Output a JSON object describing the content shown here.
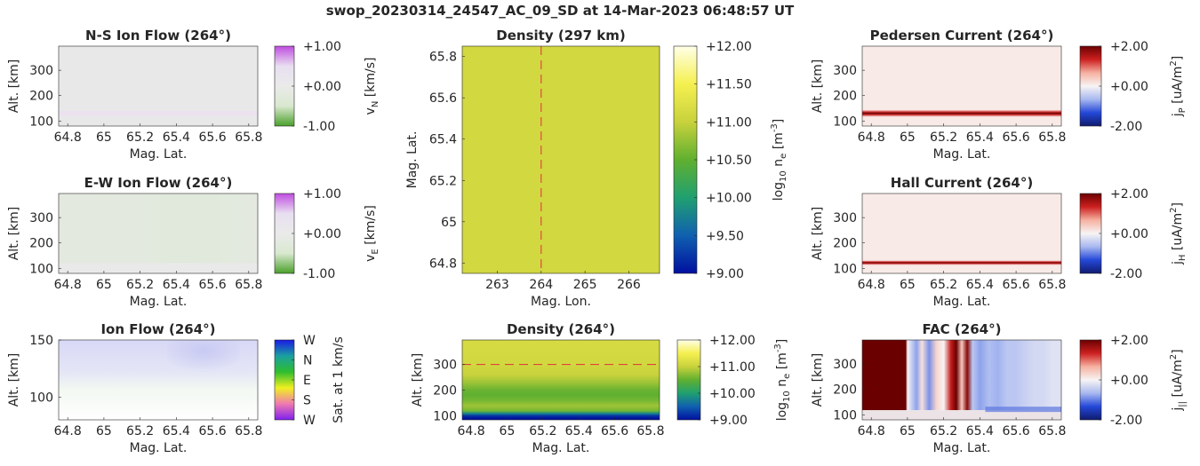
{
  "figure_title": "swop_20230314_24547_AC_09_SD at 14-Mar-2023 06:48:57 UT",
  "chart_data": [
    {
      "id": "ns",
      "type": "heatmap",
      "title": "N-S Ion Flow (264°)",
      "xlabel": "Mag. Lat.",
      "ylabel": "Alt. [km]",
      "xlim": [
        64.75,
        65.85
      ],
      "ylim": [
        80,
        395
      ],
      "xticks": [
        "64.8",
        "65",
        "65.2",
        "65.4",
        "65.6",
        "65.8"
      ],
      "xtick_values": [
        64.8,
        65.0,
        65.2,
        65.4,
        65.6,
        65.8
      ],
      "yticks": [
        "100",
        "200",
        "300"
      ],
      "ytick_values": [
        100,
        200,
        300
      ],
      "colorbar": {
        "label": "v",
        "label_sub": "N",
        "label_rest": " [km/s]",
        "ticks": [
          "+1.00",
          "+0.00",
          "-1.00"
        ],
        "colors": [
          "#c04de0",
          "#e8dff0",
          "#eaeaea",
          "#d9e8cf",
          "#4aa02a"
        ]
      },
      "description": "Near-zero flow everywhere; faint magenta band around 130 km.",
      "band": {
        "alt_low": 120,
        "alt_high": 140,
        "value": 0.1
      }
    },
    {
      "id": "ew",
      "type": "heatmap",
      "title": "E-W Ion Flow (264°)",
      "xlabel": "Mag. Lat.",
      "ylabel": "Alt. [km]",
      "xlim": [
        64.75,
        65.85
      ],
      "ylim": [
        80,
        395
      ],
      "xticks": [
        "64.8",
        "65",
        "65.2",
        "65.4",
        "65.6",
        "65.8"
      ],
      "xtick_values": [
        64.8,
        65.0,
        65.2,
        65.4,
        65.6,
        65.8
      ],
      "yticks": [
        "100",
        "200",
        "300"
      ],
      "ytick_values": [
        100,
        200,
        300
      ],
      "colorbar": {
        "label": "v",
        "label_sub": "E",
        "label_rest": " [km/s]",
        "ticks": [
          "+1.00",
          "+0.00",
          "-1.00"
        ],
        "colors": [
          "#c04de0",
          "#e8dff0",
          "#eaeaea",
          "#d9e8cf",
          "#4aa02a"
        ]
      },
      "description": "Weak negative (green) flow above ~120 km, stronger near Mag. Lat. 65.4-65.6.",
      "flow_by_lat": {
        "lat": [
          64.8,
          65.0,
          65.2,
          65.4,
          65.6,
          65.8
        ],
        "value": [
          -0.2,
          -0.22,
          -0.2,
          -0.28,
          -0.26,
          -0.2
        ]
      }
    },
    {
      "id": "ionflow",
      "type": "heatmap",
      "title": "Ion Flow (264°)",
      "xlabel": "Mag. Lat.",
      "ylabel": "Alt. [km]",
      "xlim": [
        64.75,
        65.85
      ],
      "ylim": [
        80,
        150
      ],
      "xticks": [
        "64.8",
        "65",
        "65.2",
        "65.4",
        "65.6",
        "65.8"
      ],
      "xtick_values": [
        64.8,
        65.0,
        65.2,
        65.4,
        65.6,
        65.8
      ],
      "yticks": [
        "100",
        "150"
      ],
      "ytick_values": [
        100,
        150
      ],
      "colorbar": {
        "label": "Sat. at 1 km/s",
        "ticks": [
          "W",
          "N",
          "E",
          "S",
          "W"
        ],
        "colors": [
          "#1a1ae6",
          "#1aa0a0",
          "#2ebd2e",
          "#f0f020",
          "#f07ab0",
          "#8020f0"
        ]
      },
      "description": "Pale lavender (westward) above ~120 km, stronger near Mag. Lat. 65.4-65.6."
    },
    {
      "id": "dens_top",
      "type": "heatmap",
      "title": "Density (297 km)",
      "xlabel": "Mag. Lon.",
      "ylabel": "Mag. Lat.",
      "xlim": [
        262.2,
        266.7
      ],
      "ylim": [
        64.75,
        65.85
      ],
      "xticks": [
        "263",
        "264",
        "265",
        "266"
      ],
      "xtick_values": [
        263,
        264,
        265,
        266
      ],
      "yticks": [
        "64.8",
        "65",
        "65.2",
        "65.4",
        "65.6",
        "65.8"
      ],
      "ytick_values": [
        64.8,
        65.0,
        65.2,
        65.4,
        65.6,
        65.8
      ],
      "colorbar": {
        "label": "log",
        "label_sub": "10",
        "label_rest": " n",
        "label_sub2": "e",
        "label_unit": " [m",
        "label_sup": "-3",
        "label_end": "]",
        "ticks": [
          "+12.00",
          "+11.50",
          "+11.00",
          "+10.50",
          "+10.00",
          "+9.50",
          "+9.00"
        ],
        "colors": [
          "#ffffe8",
          "#f5f050",
          "#c8d23c",
          "#60b030",
          "#20a070",
          "#1060b0",
          "#0010a0"
        ]
      },
      "value": 11.1,
      "marker_lon": 264
    },
    {
      "id": "dens_bot",
      "type": "heatmap",
      "title": "Density (264°)",
      "xlabel": "Mag. Lat.",
      "ylabel": "Alt. [km]",
      "xlim": [
        64.75,
        65.85
      ],
      "ylim": [
        85,
        395
      ],
      "xticks": [
        "64.8",
        "65",
        "65.2",
        "65.4",
        "65.6",
        "65.8"
      ],
      "xtick_values": [
        64.8,
        65.0,
        65.2,
        65.4,
        65.6,
        65.8
      ],
      "yticks": [
        "100",
        "200",
        "300"
      ],
      "ytick_values": [
        100,
        200,
        300
      ],
      "colorbar": {
        "label": "log",
        "label_sub": "10",
        "label_rest": " n",
        "label_sub2": "e",
        "label_unit": " [m",
        "label_sup": "-3",
        "label_end": "]",
        "ticks": [
          "+12.00",
          "+11.00",
          "+10.00",
          "+9.00"
        ],
        "colors": [
          "#ffffe8",
          "#f5f050",
          "#c8d23c",
          "#60b030",
          "#20a070",
          "#1060b0",
          "#0010a0"
        ]
      },
      "profile": {
        "alt": [
          90,
          100,
          110,
          120,
          140,
          160,
          180,
          200,
          230,
          260,
          300,
          395
        ],
        "log_ne": [
          9.0,
          9.2,
          9.8,
          10.6,
          10.8,
          10.6,
          10.5,
          10.55,
          10.8,
          11.0,
          11.1,
          11.15
        ]
      },
      "marker_alt": 300
    },
    {
      "id": "ped",
      "type": "heatmap",
      "title": "Pedersen Current (264°)",
      "xlabel": "Mag. Lat.",
      "ylabel": "Alt. [km]",
      "xlim": [
        64.75,
        65.85
      ],
      "ylim": [
        80,
        395
      ],
      "xticks": [
        "64.8",
        "65",
        "65.2",
        "65.4",
        "65.6",
        "65.8"
      ],
      "xtick_values": [
        64.8,
        65.0,
        65.2,
        65.4,
        65.6,
        65.8
      ],
      "yticks": [
        "100",
        "200",
        "300"
      ],
      "ytick_values": [
        100,
        200,
        300
      ],
      "colorbar": {
        "label": "j",
        "label_sub": "P",
        "label_rest": " [uA/m",
        "label_sup": "2",
        "label_end": "]",
        "ticks": [
          "+2.00",
          "+0.00",
          "-2.00"
        ],
        "colors": [
          "#6b0000",
          "#cc2020",
          "#f6b0a0",
          "#f7f4f4",
          "#a8b8f0",
          "#2448d8",
          "#101a6e"
        ]
      },
      "band": {
        "alt_center": 130,
        "alt_halfwidth": 14,
        "value": 2.0
      },
      "background": 0.1
    },
    {
      "id": "hall",
      "type": "heatmap",
      "title": "Hall Current (264°)",
      "xlabel": "Mag. Lat.",
      "ylabel": "Alt. [km]",
      "xlim": [
        64.75,
        65.85
      ],
      "ylim": [
        80,
        395
      ],
      "xticks": [
        "64.8",
        "65",
        "65.2",
        "65.4",
        "65.6",
        "65.8"
      ],
      "xtick_values": [
        64.8,
        65.0,
        65.2,
        65.4,
        65.6,
        65.8
      ],
      "yticks": [
        "100",
        "200",
        "300"
      ],
      "ytick_values": [
        100,
        200,
        300
      ],
      "colorbar": {
        "label": "j",
        "label_sub": "H",
        "label_rest": " [uA/m",
        "label_sup": "2",
        "label_end": "]",
        "ticks": [
          "+2.00",
          "+0.00",
          "-2.00"
        ],
        "colors": [
          "#6b0000",
          "#cc2020",
          "#f6b0a0",
          "#f7f4f4",
          "#a8b8f0",
          "#2448d8",
          "#101a6e"
        ]
      },
      "band": {
        "alt_center": 122,
        "alt_halfwidth": 9,
        "value": 2.0
      },
      "background": 0.1
    },
    {
      "id": "fac",
      "type": "heatmap",
      "title": "FAC (264°)",
      "xlabel": "Mag. Lat.",
      "ylabel": "Alt. [km]",
      "xlim": [
        64.75,
        65.85
      ],
      "ylim": [
        80,
        395
      ],
      "xticks": [
        "64.8",
        "65",
        "65.2",
        "65.4",
        "65.6",
        "65.8"
      ],
      "xtick_values": [
        64.8,
        65.0,
        65.2,
        65.4,
        65.6,
        65.8
      ],
      "yticks": [
        "100",
        "200",
        "300"
      ],
      "ytick_values": [
        100,
        200,
        300
      ],
      "colorbar": {
        "label": "j",
        "label_sub": "||",
        "label_rest": " [uA/m",
        "label_sup": "2",
        "label_end": "]",
        "ticks": [
          "+2.00",
          "+0.00",
          "-2.00"
        ],
        "colors": [
          "#6b0000",
          "#cc2020",
          "#f6b0a0",
          "#f7f4f4",
          "#a8b8f0",
          "#2448d8",
          "#101a6e"
        ]
      },
      "columns": {
        "lat": [
          64.75,
          64.99,
          65.0,
          65.05,
          65.08,
          65.12,
          65.16,
          65.2,
          65.24,
          65.27,
          65.3,
          65.33,
          65.36,
          65.4,
          65.45,
          65.5,
          65.55,
          65.6,
          65.65,
          65.7,
          65.75,
          65.8,
          65.85
        ],
        "value": [
          2.0,
          2.0,
          0.0,
          -0.8,
          0.2,
          -0.9,
          0.3,
          0.0,
          1.4,
          2.0,
          0.4,
          1.8,
          -0.5,
          -0.8,
          -0.6,
          -0.7,
          -0.5,
          -0.5,
          -0.4,
          -0.3,
          -0.3,
          -0.2,
          -0.2
        ]
      },
      "bottom_alt": 118
    }
  ]
}
